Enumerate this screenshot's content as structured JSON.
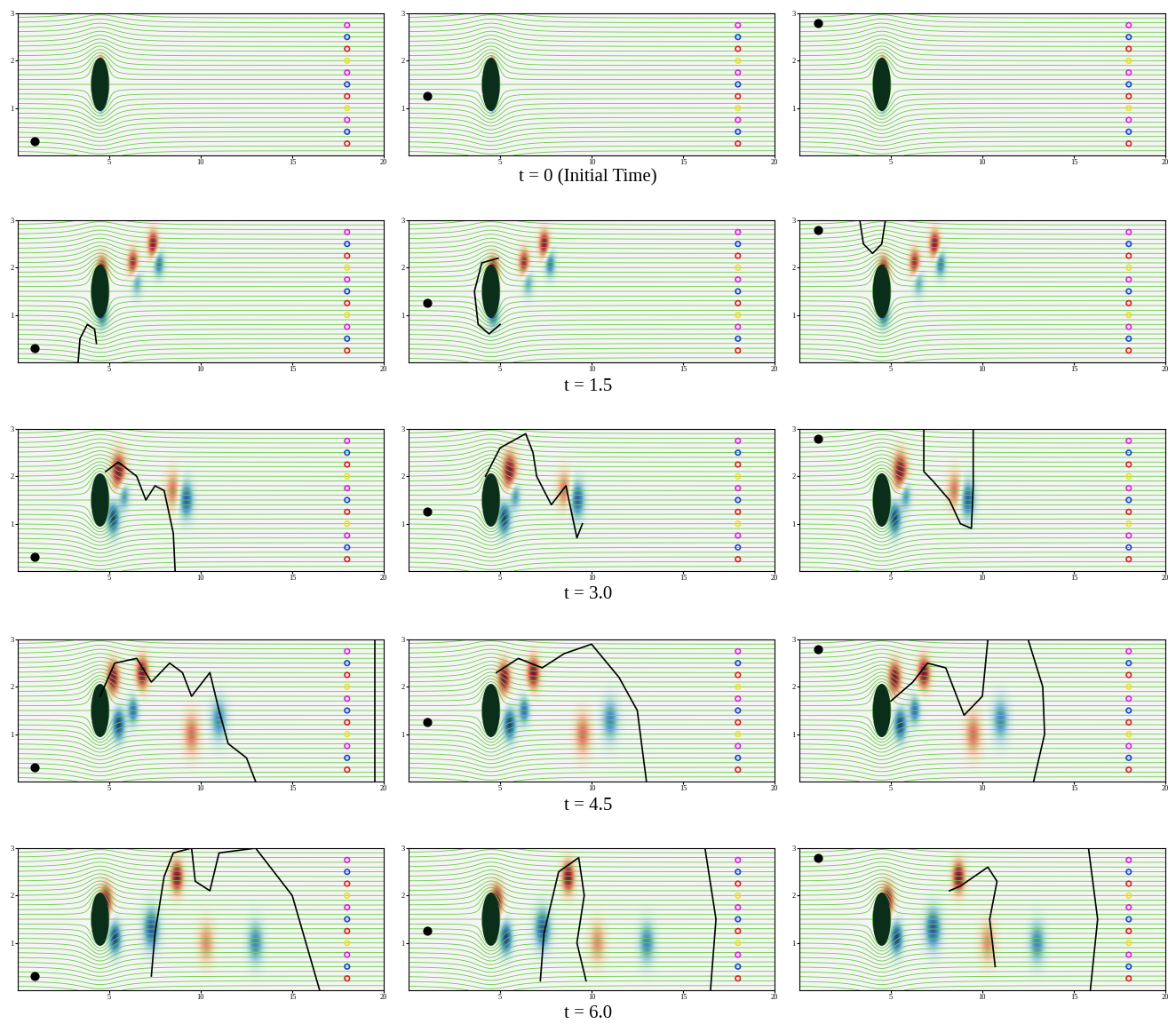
{
  "chart_data": {
    "type": "field_snapshots",
    "xlim": [
      0,
      20
    ],
    "ylim": [
      0,
      3
    ],
    "xticks": [
      5,
      10,
      15,
      20
    ],
    "yticks": [
      1,
      2,
      3
    ],
    "body": {
      "x": 4.5,
      "y": 1.5,
      "width": 0.9,
      "height": 1.1,
      "color": "#0b2e1a"
    },
    "probes": {
      "x": 18,
      "y": [
        2.75,
        2.5,
        2.25,
        2.0,
        1.75,
        1.5,
        1.25,
        1.0,
        0.75,
        0.5,
        0.25
      ],
      "colors": [
        "#e020e0",
        "#2040e0",
        "#e02020",
        "#f0e020",
        "#e020e0",
        "#2040e0",
        "#e02020",
        "#f0e020",
        "#e020e0",
        "#2040e0",
        "#e02020"
      ],
      "marker": "o"
    },
    "rows": [
      {
        "label": "t = 0 (Initial Time)",
        "vortices": [
          {
            "x": 4.55,
            "y": 1.95,
            "w": 1.0,
            "r": 0.15
          },
          {
            "x": 4.55,
            "y": 1.05,
            "w": -1.0,
            "r": 0.15
          }
        ],
        "panels": [
          {
            "dot": [
              0.9,
              0.3
            ],
            "curves": []
          },
          {
            "dot": [
              1.0,
              1.25
            ],
            "curves": []
          },
          {
            "dot": [
              1.0,
              2.8
            ],
            "curves": []
          }
        ]
      },
      {
        "label": "t = 1.5",
        "vortices": [
          {
            "x": 4.6,
            "y": 1.95,
            "w": 1.0,
            "r": 0.3
          },
          {
            "x": 4.6,
            "y": 1.05,
            "w": -1.0,
            "r": 0.3
          },
          {
            "x": 6.3,
            "y": 2.1,
            "w": 0.9,
            "r": 0.3
          },
          {
            "x": 7.4,
            "y": 2.5,
            "w": 1.0,
            "r": 0.3
          },
          {
            "x": 7.7,
            "y": 2.1,
            "w": -0.8,
            "r": 0.3
          },
          {
            "x": 6.5,
            "y": 1.7,
            "w": -0.6,
            "r": 0.3
          }
        ],
        "panels": [
          {
            "dot": [
              0.9,
              0.3
            ],
            "curves": [
              [
                [
                  3.3,
                  0
                ],
                [
                  3.4,
                  0.5
                ],
                [
                  3.8,
                  0.8
                ],
                [
                  4.2,
                  0.7
                ],
                [
                  4.3,
                  0.4
                ]
              ]
            ]
          },
          {
            "dot": [
              1.0,
              1.25
            ],
            "curves": [
              [
                [
                  4.9,
                  2.2
                ],
                [
                  4.0,
                  2.1
                ],
                [
                  3.6,
                  1.5
                ],
                [
                  3.8,
                  0.8
                ],
                [
                  4.4,
                  0.6
                ],
                [
                  5.0,
                  0.8
                ]
              ]
            ]
          },
          {
            "dot": [
              1.0,
              2.8
            ],
            "curves": [
              [
                [
                  3.3,
                  3
                ],
                [
                  3.5,
                  2.5
                ],
                [
                  4.0,
                  2.3
                ],
                [
                  4.5,
                  2.5
                ],
                [
                  4.7,
                  3
                ]
              ]
            ]
          }
        ]
      },
      {
        "label": "t = 3.0",
        "vortices": [
          {
            "x": 5.5,
            "y": 2.1,
            "w": 1.0,
            "r": 0.4
          },
          {
            "x": 5.2,
            "y": 1.1,
            "w": -1.0,
            "r": 0.35
          },
          {
            "x": 5.8,
            "y": 1.6,
            "w": -0.7,
            "r": 0.3
          },
          {
            "x": 8.5,
            "y": 1.7,
            "w": 0.6,
            "r": 0.4
          },
          {
            "x": 9.2,
            "y": 1.5,
            "w": -0.9,
            "r": 0.4
          }
        ],
        "panels": [
          {
            "dot": [
              0.9,
              0.3
            ],
            "curves": [
              [
                [
                  4.8,
                  2.1
                ],
                [
                  5.5,
                  2.3
                ],
                [
                  6.5,
                  2.0
                ],
                [
                  7.0,
                  1.5
                ],
                [
                  7.5,
                  1.8
                ],
                [
                  8.0,
                  1.7
                ],
                [
                  8.5,
                  0.8
                ],
                [
                  8.6,
                  0
                ]
              ]
            ]
          },
          {
            "dot": [
              1.0,
              1.25
            ],
            "curves": [
              [
                [
                  4.2,
                  2.0
                ],
                [
                  5,
                  2.6
                ],
                [
                  6.4,
                  2.9
                ],
                [
                  6.8,
                  2.5
                ],
                [
                  7,
                  2
                ],
                [
                  7.8,
                  1.4
                ],
                [
                  8.6,
                  1.8
                ],
                [
                  9.2,
                  0.7
                ],
                [
                  9.5,
                  1.0
                ]
              ]
            ]
          },
          {
            "dot": [
              1.0,
              2.8
            ],
            "curves": [
              [
                [
                  6.8,
                  3
                ],
                [
                  6.8,
                  2.1
                ],
                [
                  7.3,
                  1.9
                ],
                [
                  8.2,
                  1.5
                ],
                [
                  8.8,
                  1.0
                ],
                [
                  9.4,
                  0.9
                ],
                [
                  9.5,
                  1.8
                ],
                [
                  9.5,
                  3
                ]
              ]
            ]
          }
        ]
      },
      {
        "label": "t = 4.5",
        "vortices": [
          {
            "x": 5.2,
            "y": 2.2,
            "w": 1.0,
            "r": 0.35
          },
          {
            "x": 6.8,
            "y": 2.3,
            "w": 1.0,
            "r": 0.35
          },
          {
            "x": 5.5,
            "y": 1.2,
            "w": -1.0,
            "r": 0.35
          },
          {
            "x": 6.3,
            "y": 1.5,
            "w": -0.8,
            "r": 0.3
          },
          {
            "x": 9.5,
            "y": 1.0,
            "w": 0.6,
            "r": 0.45
          },
          {
            "x": 11.0,
            "y": 1.3,
            "w": -0.7,
            "r": 0.45
          }
        ],
        "panels": [
          {
            "dot": [
              0.9,
              0.3
            ],
            "curves": [
              [
                [
                  4.5,
                  1.8
                ],
                [
                  5.3,
                  2.5
                ],
                [
                  6.5,
                  2.6
                ],
                [
                  7.3,
                  2.1
                ],
                [
                  8.3,
                  2.5
                ],
                [
                  9.0,
                  2.3
                ],
                [
                  9.5,
                  1.8
                ],
                [
                  10.5,
                  2.3
                ],
                [
                  11,
                  1.5
                ],
                [
                  11.5,
                  0.8
                ],
                [
                  12.5,
                  0.5
                ],
                [
                  13.0,
                  0
                ]
              ],
              [
                [
                  19.5,
                  0
                ],
                [
                  19.5,
                  3
                ]
              ]
            ]
          },
          {
            "dot": [
              1.0,
              1.25
            ],
            "curves": [
              [
                [
                  4.8,
                  2.3
                ],
                [
                  6,
                  2.6
                ],
                [
                  7.3,
                  2.4
                ],
                [
                  8.5,
                  2.7
                ],
                [
                  10,
                  2.9
                ],
                [
                  11.5,
                  2.2
                ],
                [
                  12.5,
                  1.5
                ],
                [
                  13,
                  0
                ]
              ]
            ]
          },
          {
            "dot": [
              1.0,
              2.8
            ],
            "curves": [
              [
                [
                  5,
                  1.7
                ],
                [
                  6.2,
                  2.1
                ],
                [
                  7,
                  2.5
                ],
                [
                  8,
                  2.4
                ],
                [
                  9,
                  1.4
                ],
                [
                  10,
                  1.8
                ],
                [
                  10.3,
                  3
                ]
              ],
              [
                [
                  12.5,
                  3
                ],
                [
                  13.3,
                  2
                ],
                [
                  13.4,
                  1
                ],
                [
                  12.8,
                  0
                ]
              ]
            ]
          }
        ]
      },
      {
        "label": "t = 6.0",
        "vortices": [
          {
            "x": 4.8,
            "y": 1.9,
            "w": 1.0,
            "r": 0.35
          },
          {
            "x": 5.3,
            "y": 1.1,
            "w": -1.0,
            "r": 0.35
          },
          {
            "x": 8.7,
            "y": 2.4,
            "w": 1.0,
            "r": 0.35
          },
          {
            "x": 7.3,
            "y": 1.3,
            "w": -0.9,
            "r": 0.45
          },
          {
            "x": 10.3,
            "y": 1.0,
            "w": 0.5,
            "r": 0.45
          },
          {
            "x": 13.0,
            "y": 1.0,
            "w": -0.7,
            "r": 0.45
          }
        ],
        "panels": [
          {
            "dot": [
              0.9,
              0.3
            ],
            "curves": [
              [
                [
                  7.3,
                  0.3
                ],
                [
                  7.5,
                  1.2
                ],
                [
                  8,
                  2.4
                ],
                [
                  8.5,
                  2.9
                ],
                [
                  9.5,
                  3
                ],
                [
                  9.7,
                  2.3
                ],
                [
                  10.5,
                  2.1
                ],
                [
                  11,
                  2.9
                ],
                [
                  13,
                  3
                ],
                [
                  15,
                  2
                ],
                [
                  16.5,
                  0
                ]
              ]
            ]
          },
          {
            "dot": [
              1.0,
              1.25
            ],
            "curves": [
              [
                [
                  7.2,
                  0.2
                ],
                [
                  7.4,
                  1.2
                ],
                [
                  8.2,
                  2.5
                ],
                [
                  9.3,
                  2.8
                ],
                [
                  9.6,
                  2.0
                ],
                [
                  9.2,
                  1.0
                ],
                [
                  9.7,
                  0.2
                ]
              ],
              [
                [
                  16.2,
                  3
                ],
                [
                  16.8,
                  1.5
                ],
                [
                  16.5,
                  0
                ]
              ]
            ]
          },
          {
            "dot": [
              1.0,
              2.8
            ],
            "curves": [
              [
                [
                  8.2,
                  2.1
                ],
                [
                  8.8,
                  2.2
                ],
                [
                  10.3,
                  2.6
                ],
                [
                  10.8,
                  2.3
                ],
                [
                  10.4,
                  1.5
                ],
                [
                  10.7,
                  0.5
                ]
              ],
              [
                [
                  15.8,
                  3
                ],
                [
                  16.3,
                  1.5
                ],
                [
                  15.9,
                  0
                ]
              ]
            ]
          }
        ]
      }
    ]
  }
}
